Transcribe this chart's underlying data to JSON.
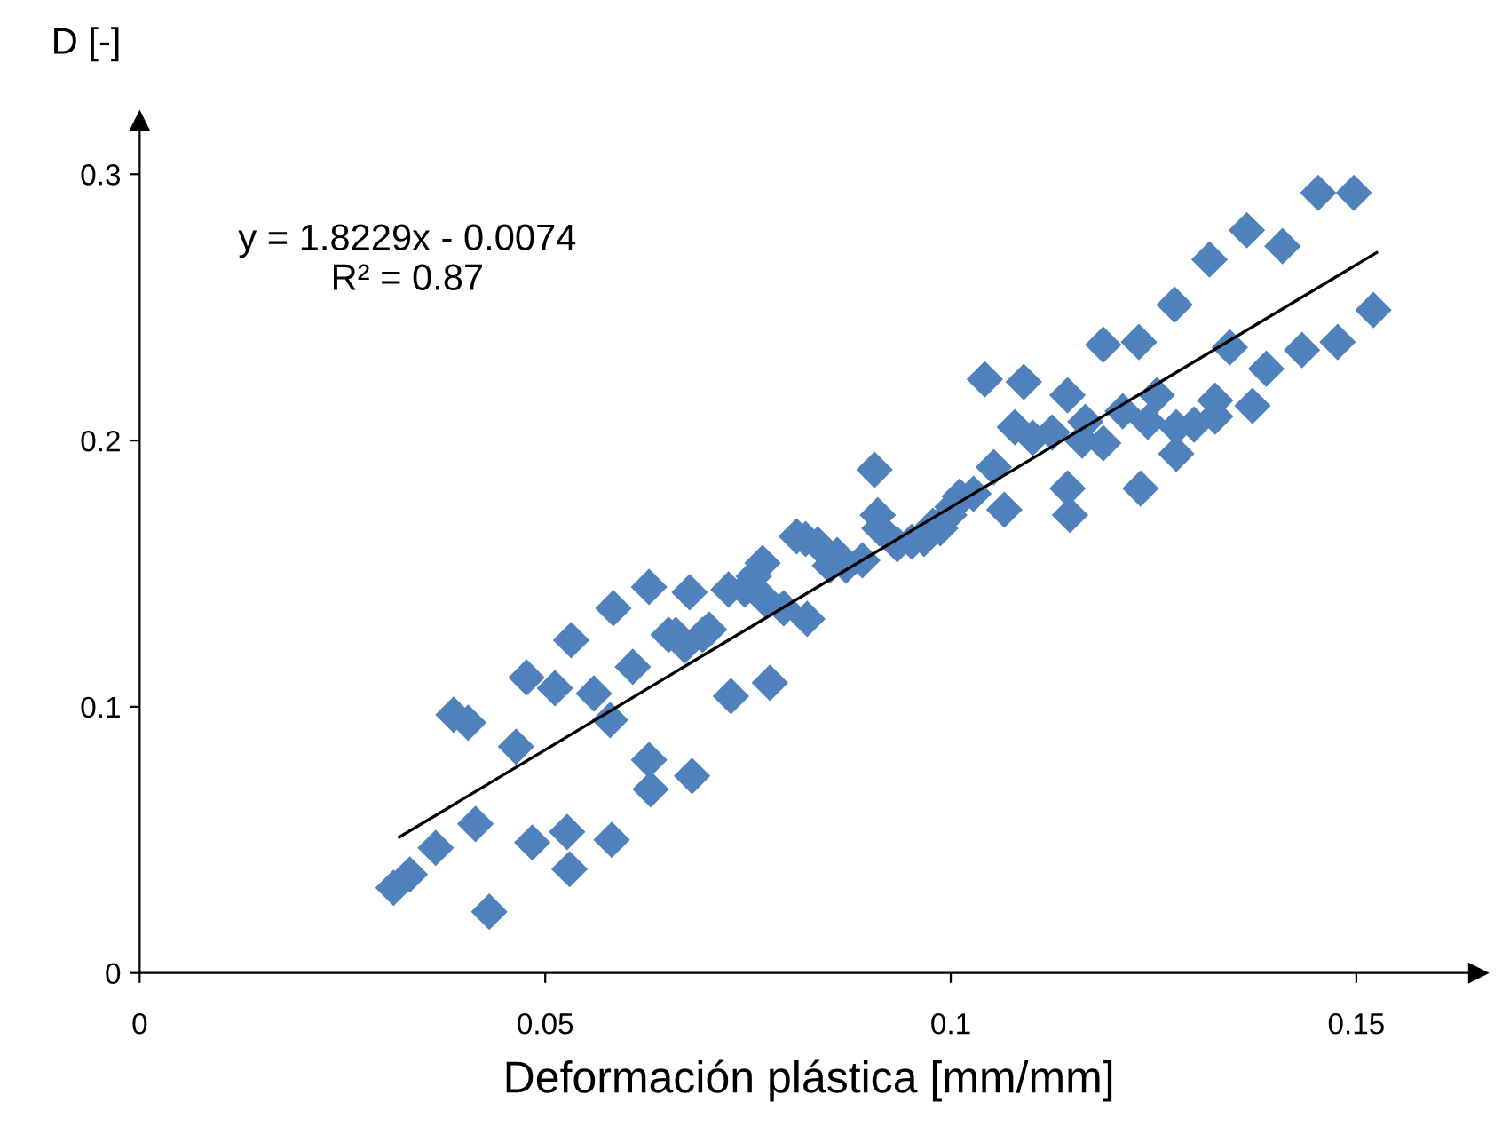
{
  "chart_data": {
    "type": "scatter",
    "xlabel": "Deformación plástica [mm/mm]",
    "ylabel": "D [-]",
    "annotations": [
      "y = 1.8229x - 0.0074\nR² = 0.87"
    ],
    "xlim": [
      0,
      0.165
    ],
    "ylim": [
      0,
      0.32
    ],
    "xticks": [
      0,
      0.05,
      0.1,
      0.15
    ],
    "yticks": [
      0,
      0.1,
      0.2,
      0.3
    ],
    "grid": false,
    "legend": false,
    "marker": "diamond",
    "series": [
      {
        "color": "#4f81bd",
        "x": [
          0.0313,
          0.0333,
          0.0365,
          0.0387,
          0.0405,
          0.0414,
          0.0431,
          0.0464,
          0.0477,
          0.0484,
          0.0512,
          0.0527,
          0.0532,
          0.053,
          0.056,
          0.058,
          0.0582,
          0.0584,
          0.0608,
          0.0628,
          0.0628,
          0.063,
          0.0652,
          0.0661,
          0.0672,
          0.0678,
          0.0681,
          0.0694,
          0.0702,
          0.0726,
          0.0729,
          0.0746,
          0.0757,
          0.0768,
          0.0772,
          0.0777,
          0.0794,
          0.081,
          0.0821,
          0.0823,
          0.0836,
          0.0851,
          0.086,
          0.0871,
          0.0891,
          0.0906,
          0.091,
          0.0912,
          0.0934,
          0.0952,
          0.0967,
          0.0978,
          0.0987,
          0.0998,
          0.1002,
          0.1011,
          0.1028,
          0.1042,
          0.1053,
          0.1066,
          0.1079,
          0.109,
          0.1101,
          0.1125,
          0.1144,
          0.1144,
          0.1147,
          0.1162,
          0.1166,
          0.1188,
          0.1188,
          0.1212,
          0.1232,
          0.1234,
          0.1243,
          0.1254,
          0.1276,
          0.1278,
          0.1278,
          0.13,
          0.1319,
          0.1326,
          0.1326,
          0.1344,
          0.1365,
          0.1372,
          0.1389,
          0.1409,
          0.1433,
          0.1453,
          0.1477,
          0.1497,
          0.1521
        ],
        "values": [
          0.032,
          0.037,
          0.047,
          0.097,
          0.094,
          0.056,
          0.023,
          0.085,
          0.111,
          0.049,
          0.107,
          0.053,
          0.125,
          0.039,
          0.105,
          0.095,
          0.05,
          0.137,
          0.115,
          0.145,
          0.08,
          0.069,
          0.127,
          0.127,
          0.123,
          0.143,
          0.074,
          0.127,
          0.129,
          0.144,
          0.104,
          0.144,
          0.149,
          0.154,
          0.14,
          0.109,
          0.137,
          0.164,
          0.163,
          0.133,
          0.161,
          0.153,
          0.157,
          0.153,
          0.155,
          0.189,
          0.172,
          0.167,
          0.161,
          0.162,
          0.163,
          0.168,
          0.167,
          0.172,
          0.175,
          0.179,
          0.18,
          0.223,
          0.19,
          0.174,
          0.205,
          0.222,
          0.201,
          0.203,
          0.217,
          0.182,
          0.172,
          0.2,
          0.207,
          0.236,
          0.199,
          0.211,
          0.237,
          0.182,
          0.207,
          0.217,
          0.251,
          0.195,
          0.205,
          0.206,
          0.268,
          0.215,
          0.209,
          0.235,
          0.279,
          0.213,
          0.227,
          0.273,
          0.234,
          0.293,
          0.237,
          0.293,
          0.249
        ]
      },
      {
        "color": "#000000",
        "type": "line",
        "marker": "none",
        "x": [
          0.032,
          0.1525
        ],
        "values": [
          0.051,
          0.2706
        ]
      }
    ]
  }
}
